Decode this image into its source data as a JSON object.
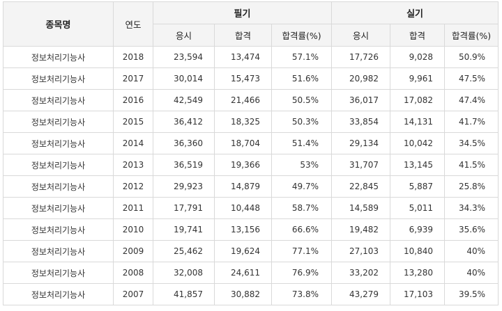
{
  "header": {
    "col_name": "종목명",
    "col_year": "연도",
    "group_written": "필기",
    "group_practical": "실기",
    "sub_apply": "응시",
    "sub_pass": "합격",
    "sub_rate": "합격률(%)"
  },
  "rows": [
    {
      "name": "정보처리기능사",
      "year": "2018",
      "w_apply": "23,594",
      "w_pass": "13,474",
      "w_rate": "57.1%",
      "p_apply": "17,726",
      "p_pass": "9,028",
      "p_rate": "50.9%"
    },
    {
      "name": "정보처리기능사",
      "year": "2017",
      "w_apply": "30,014",
      "w_pass": "15,473",
      "w_rate": "51.6%",
      "p_apply": "20,982",
      "p_pass": "9,961",
      "p_rate": "47.5%"
    },
    {
      "name": "정보처리기능사",
      "year": "2016",
      "w_apply": "42,549",
      "w_pass": "21,466",
      "w_rate": "50.5%",
      "p_apply": "36,017",
      "p_pass": "17,082",
      "p_rate": "47.4%"
    },
    {
      "name": "정보처리기능사",
      "year": "2015",
      "w_apply": "36,412",
      "w_pass": "18,325",
      "w_rate": "50.3%",
      "p_apply": "33,854",
      "p_pass": "14,131",
      "p_rate": "41.7%"
    },
    {
      "name": "정보처리기능사",
      "year": "2014",
      "w_apply": "36,360",
      "w_pass": "18,704",
      "w_rate": "51.4%",
      "p_apply": "29,134",
      "p_pass": "10,042",
      "p_rate": "34.5%"
    },
    {
      "name": "정보처리기능사",
      "year": "2013",
      "w_apply": "36,519",
      "w_pass": "19,366",
      "w_rate": "53%",
      "p_apply": "31,707",
      "p_pass": "13,145",
      "p_rate": "41.5%"
    },
    {
      "name": "정보처리기능사",
      "year": "2012",
      "w_apply": "29,923",
      "w_pass": "14,879",
      "w_rate": "49.7%",
      "p_apply": "22,845",
      "p_pass": "5,887",
      "p_rate": "25.8%"
    },
    {
      "name": "정보처리기능사",
      "year": "2011",
      "w_apply": "17,791",
      "w_pass": "10,448",
      "w_rate": "58.7%",
      "p_apply": "14,589",
      "p_pass": "5,011",
      "p_rate": "34.3%"
    },
    {
      "name": "정보처리기능사",
      "year": "2010",
      "w_apply": "19,741",
      "w_pass": "13,156",
      "w_rate": "66.6%",
      "p_apply": "19,482",
      "p_pass": "6,939",
      "p_rate": "35.6%"
    },
    {
      "name": "정보처리기능사",
      "year": "2009",
      "w_apply": "25,462",
      "w_pass": "19,624",
      "w_rate": "77.1%",
      "p_apply": "27,103",
      "p_pass": "10,840",
      "p_rate": "40%"
    },
    {
      "name": "정보처리기능사",
      "year": "2008",
      "w_apply": "32,008",
      "w_pass": "24,611",
      "w_rate": "76.9%",
      "p_apply": "33,202",
      "p_pass": "13,280",
      "p_rate": "40%"
    },
    {
      "name": "정보처리기능사",
      "year": "2007",
      "w_apply": "41,857",
      "w_pass": "30,882",
      "w_rate": "73.8%",
      "p_apply": "43,279",
      "p_pass": "17,103",
      "p_rate": "39.5%"
    }
  ]
}
